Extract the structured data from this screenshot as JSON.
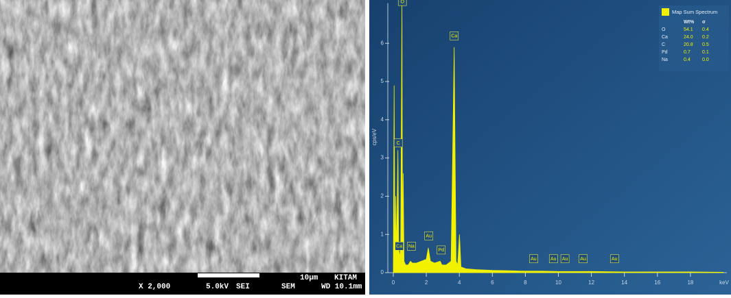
{
  "sem_image": {
    "magnification": "X 2,000",
    "voltage": "5.0kV",
    "detector": "SEI",
    "scale": "10µm",
    "lab": "KITAM",
    "mode": "SEM",
    "working_distance": "WD 10.1mm"
  },
  "chart_data": {
    "type": "area",
    "axis_label_y": "cps/eV",
    "axis_label_x": "keV",
    "x": [
      0,
      0.05,
      0.1,
      0.15,
      0.2,
      0.277,
      0.33,
      0.4,
      0.45,
      0.525,
      0.56,
      0.6,
      0.65,
      0.75,
      0.9,
      1.04,
      1.15,
      1.4,
      1.7,
      2.0,
      2.12,
      2.25,
      2.5,
      2.84,
      2.95,
      3.2,
      3.5,
      3.69,
      3.8,
      3.9,
      4.01,
      4.1,
      4.4,
      5,
      6,
      7,
      8,
      9,
      10,
      12,
      14,
      16,
      18,
      20
    ],
    "series": [
      {
        "name": "Map Sum Spectrum",
        "color": "#f2f200",
        "values": [
          0,
          4.9,
          0.3,
          2.0,
          0.5,
          3.2,
          0.6,
          0.4,
          0.8,
          7.1,
          0.5,
          2.6,
          0.3,
          0.2,
          0.2,
          0.3,
          0.25,
          0.25,
          0.3,
          0.35,
          0.65,
          0.3,
          0.25,
          0.3,
          0.2,
          0.2,
          0.3,
          5.9,
          0.3,
          0.2,
          1.0,
          0.15,
          0.1,
          0.08,
          0.06,
          0.05,
          0.04,
          0.04,
          0.03,
          0.03,
          0.02,
          0.02,
          0.02,
          0.01
        ]
      }
    ],
    "xlim": [
      0,
      20
    ],
    "xticks": [
      0,
      2,
      4,
      6,
      8,
      10,
      12,
      14,
      16,
      18
    ],
    "ylim": [
      0,
      7.05
    ],
    "yticks": [
      0,
      1,
      2,
      3,
      4,
      5,
      6
    ],
    "annotations": [
      {
        "label": "O",
        "x": 0.55,
        "y": 6.95
      },
      {
        "label": "Ca",
        "x": 3.69,
        "y": 6.05
      },
      {
        "label": "C",
        "x": 0.3,
        "y": 3.25
      },
      {
        "label": "Ca",
        "x": 0.36,
        "y": 0.55
      },
      {
        "label": "Na",
        "x": 1.1,
        "y": 0.55
      },
      {
        "label": "Au",
        "x": 2.15,
        "y": 0.82
      },
      {
        "label": "Pd",
        "x": 2.9,
        "y": 0.45
      },
      {
        "label": "Au",
        "x": 8.5,
        "y": 0.22
      },
      {
        "label": "Au",
        "x": 9.7,
        "y": 0.22
      },
      {
        "label": "Au",
        "x": 10.4,
        "y": 0.22
      },
      {
        "label": "Au",
        "x": 11.5,
        "y": 0.22
      },
      {
        "label": "Au",
        "x": 13.4,
        "y": 0.22
      }
    ],
    "table": {
      "columns": [
        "Wt%",
        "σ"
      ],
      "rows": [
        [
          "O",
          "54.1",
          "0.4"
        ],
        [
          "Ca",
          "24.0",
          "0.2"
        ],
        [
          "C",
          "20.8",
          "0.5"
        ],
        [
          "Pd",
          "0.7",
          "0.1"
        ],
        [
          "Na",
          "0.4",
          "0.0"
        ]
      ]
    }
  }
}
